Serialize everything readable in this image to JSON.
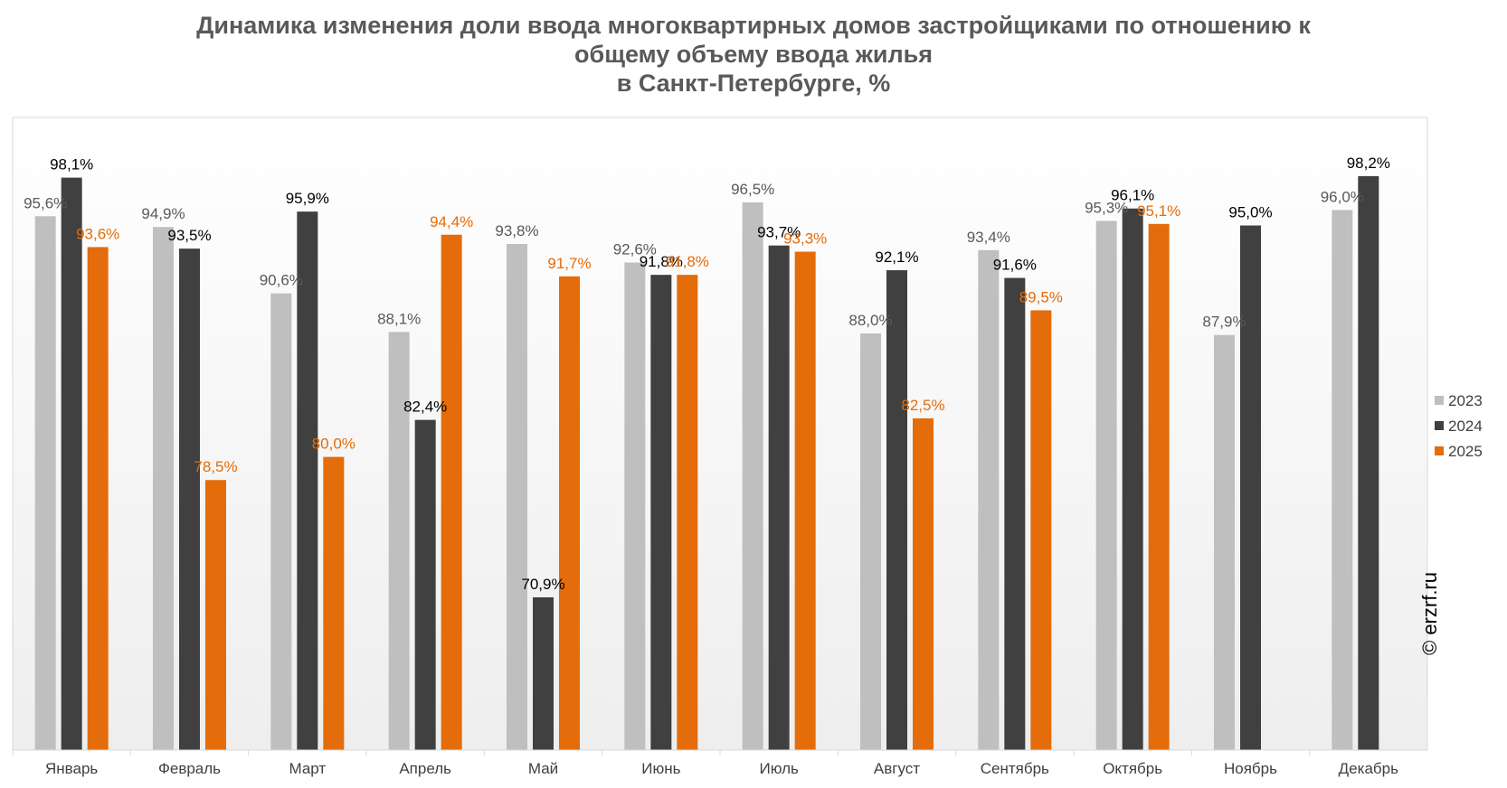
{
  "title_lines": [
    "Динамика изменения доли ввода многоквартирных домов застройщиками по отношению к",
    "общему объему ввода жилья",
    "в Санкт-Петербурге, %"
  ],
  "watermark": "© erzrf.ru",
  "colors": {
    "2023": "#bfbfbf",
    "2024": "#404040",
    "2025": "#e46c0a"
  },
  "chart_data": {
    "type": "bar",
    "title": "Динамика изменения доли ввода многоквартирных домов застройщиками по отношению к общему объему ввода жилья в Санкт-Петербурге, %",
    "categories": [
      "Январь",
      "Февраль",
      "Март",
      "Апрель",
      "Май",
      "Июнь",
      "Июль",
      "Август",
      "Сентябрь",
      "Октябрь",
      "Ноябрь",
      "Декабрь"
    ],
    "series": [
      {
        "name": "2023",
        "values": [
          95.6,
          94.9,
          90.6,
          88.1,
          93.8,
          92.6,
          96.5,
          88.0,
          93.4,
          95.3,
          87.9,
          96.0
        ],
        "labels": [
          "95,6%",
          "94,9%",
          "90,6%",
          "88,1%",
          "93,8%",
          "92,6%",
          "96,5%",
          "88,0%",
          "93,4%",
          "95,3%",
          "87,9%",
          "96,0%"
        ]
      },
      {
        "name": "2024",
        "values": [
          98.1,
          93.5,
          95.9,
          82.4,
          70.9,
          91.8,
          93.7,
          92.1,
          91.6,
          96.1,
          95.0,
          98.2
        ],
        "labels": [
          "98,1%",
          "93,5%",
          "95,9%",
          "82,4%",
          "70,9%",
          "91,8%",
          "93,7%",
          "92,1%",
          "91,6%",
          "96,1%",
          "95,0%",
          "98,2%"
        ]
      },
      {
        "name": "2025",
        "values": [
          93.6,
          78.5,
          80.0,
          94.4,
          91.7,
          91.8,
          93.3,
          82.5,
          89.5,
          95.1,
          null,
          null
        ],
        "labels": [
          "93,6%",
          "78,5%",
          "80,0%",
          "94,4%",
          "91,7%",
          "91,8%",
          "93,3%",
          "82,5%",
          "89,5%",
          "95,1%",
          "",
          ""
        ]
      }
    ],
    "ylim": [
      61,
      102
    ],
    "xlabel": "",
    "ylabel": "",
    "grid": false,
    "legend": "right"
  }
}
